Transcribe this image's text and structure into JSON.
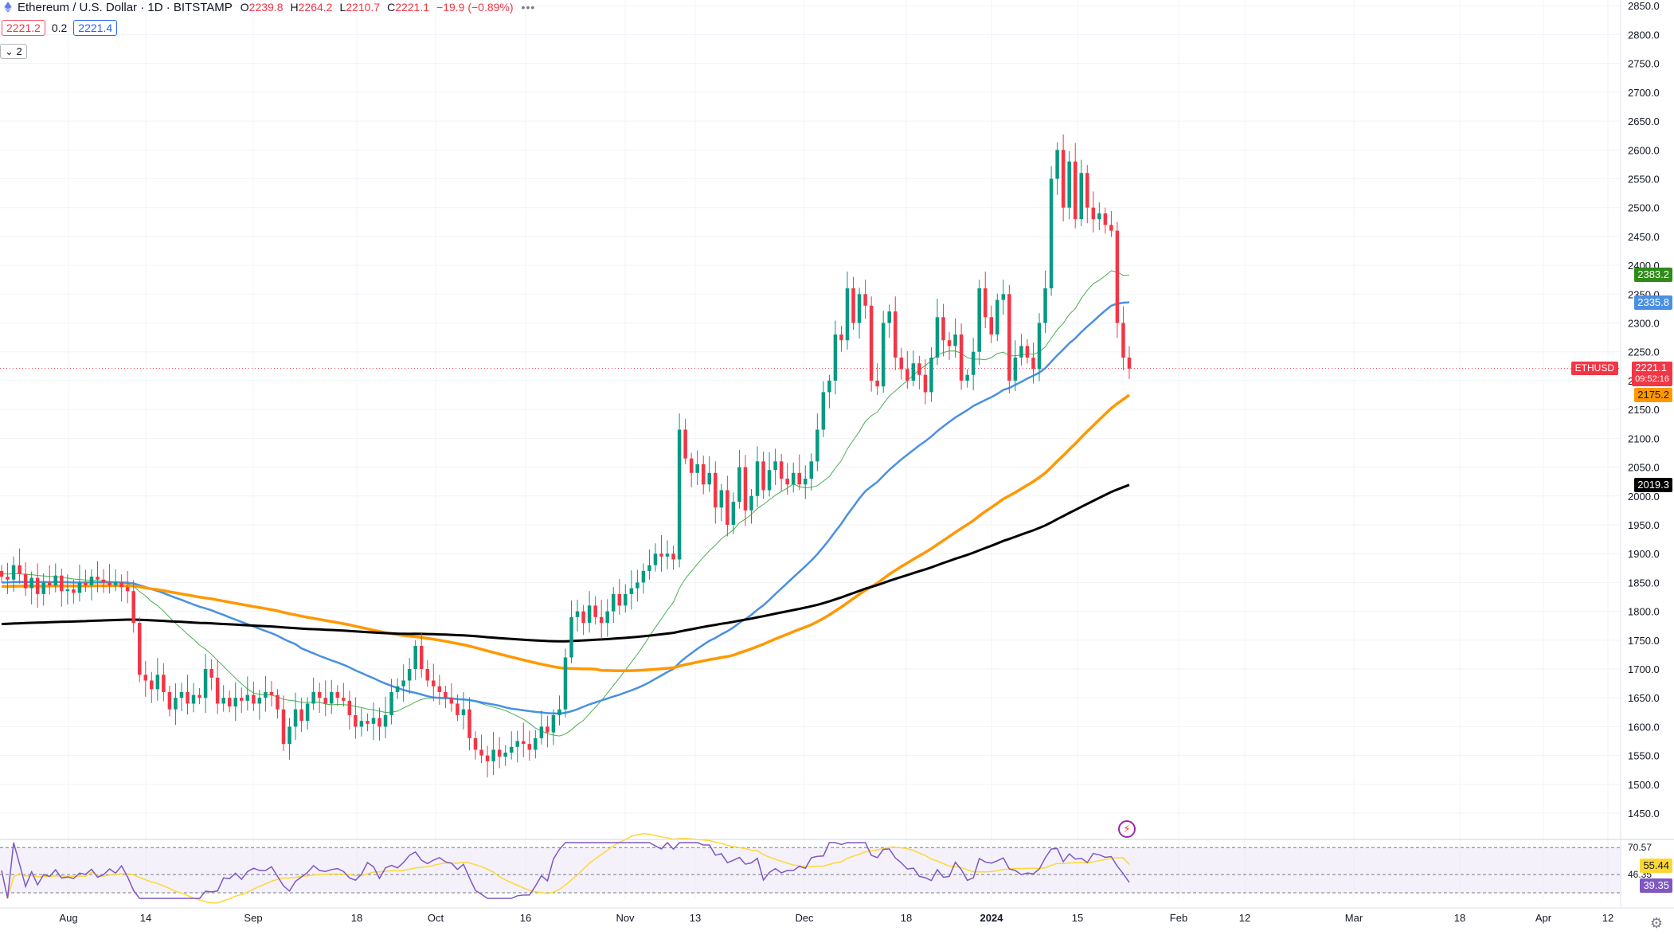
{
  "header": {
    "title": "Ethereum / U.S. Dollar · 1D · BITSTAMP",
    "open_label": "O",
    "open": "2239.8",
    "high_label": "H",
    "high": "2264.2",
    "low_label": "L",
    "low": "2210.7",
    "close_label": "C",
    "close": "2221.1",
    "change": "−19.9 (−0.89%)",
    "more": "•••"
  },
  "prices": {
    "bid": "2221.2",
    "spread": "0.2",
    "ask": "2221.4"
  },
  "indicators_toggle": "2",
  "colors": {
    "up": "#089981",
    "down": "#f23645",
    "ma20": "#4caf50",
    "ma50": "#4a90e2",
    "ma100": "#ff9800",
    "ma200": "#000000",
    "rsi": "#7e57c2",
    "rsi_ma": "#fdd835",
    "grid": "#f0f3fa"
  },
  "price_axis": {
    "ticks": [
      "2850.0",
      "2800.0",
      "2750.0",
      "2700.0",
      "2650.0",
      "2600.0",
      "2550.0",
      "2500.0",
      "2450.0",
      "2400.0",
      "2350.0",
      "2300.0",
      "2250.0",
      "2200.0",
      "2150.0",
      "2100.0",
      "2050.0",
      "2000.0",
      "1950.0",
      "1900.0",
      "1850.0",
      "1800.0",
      "1750.0",
      "1700.0",
      "1650.0",
      "1600.0",
      "1550.0",
      "1500.0",
      "1450.0"
    ],
    "tick_values": [
      2850,
      2800,
      2750,
      2700,
      2650,
      2600,
      2550,
      2500,
      2450,
      2400,
      2350,
      2300,
      2250,
      2200,
      2150,
      2100,
      2050,
      2000,
      1950,
      1900,
      1850,
      1800,
      1750,
      1700,
      1650,
      1600,
      1550,
      1500,
      1450
    ]
  },
  "labels": {
    "ma20": "2383.2",
    "ma50": "2335.8",
    "last": "2221.1",
    "countdown": "09:52:16",
    "ma100": "2175.2",
    "ma200": "2019.3",
    "symbol": "ETHUSD",
    "rsi_high": "70.57",
    "rsi_ma": "55.44",
    "rsi_mid": "46.35",
    "rsi": "39.35"
  },
  "time_axis": {
    "labels": [
      "Aug",
      "14",
      "Sep",
      "18",
      "Oct",
      "16",
      "Nov",
      "13",
      "Dec",
      "18",
      "2024",
      "15",
      "Feb",
      "12",
      "Mar",
      "18",
      "Apr",
      "12"
    ],
    "bold_index": 10
  },
  "chart_data": {
    "type": "candlestick",
    "title": "Ethereum / U.S. Dollar · 1D · BITSTAMP",
    "y_range": [
      1410,
      2860
    ],
    "start_close": 1870,
    "series_closes": [
      1860,
      1855,
      1880,
      1865,
      1840,
      1858,
      1830,
      1850,
      1845,
      1862,
      1835,
      1838,
      1832,
      1850,
      1845,
      1860,
      1855,
      1850,
      1845,
      1850,
      1842,
      1835,
      1780,
      1690,
      1680,
      1665,
      1690,
      1660,
      1630,
      1650,
      1660,
      1640,
      1655,
      1650,
      1700,
      1685,
      1640,
      1650,
      1635,
      1650,
      1645,
      1655,
      1640,
      1650,
      1660,
      1655,
      1630,
      1570,
      1600,
      1630,
      1610,
      1640,
      1660,
      1650,
      1640,
      1660,
      1650,
      1645,
      1620,
      1600,
      1610,
      1605,
      1615,
      1600,
      1620,
      1660,
      1670,
      1680,
      1700,
      1740,
      1700,
      1680,
      1670,
      1660,
      1650,
      1640,
      1620,
      1630,
      1580,
      1560,
      1550,
      1540,
      1560,
      1548,
      1555,
      1565,
      1575,
      1570,
      1560,
      1580,
      1600,
      1590,
      1620,
      1630,
      1720,
      1790,
      1800,
      1780,
      1810,
      1790,
      1780,
      1800,
      1830,
      1810,
      1830,
      1840,
      1850,
      1870,
      1880,
      1900,
      1895,
      1900,
      1890,
      2115,
      2065,
      2040,
      2055,
      2020,
      2040,
      1980,
      2010,
      1950,
      1990,
      2050,
      1975,
      2000,
      2060,
      2010,
      2045,
      2060,
      2030,
      2020,
      2040,
      2020,
      2030,
      2060,
      2115,
      2180,
      2200,
      2280,
      2270,
      2360,
      2300,
      2350,
      2330,
      2200,
      2190,
      2300,
      2320,
      2240,
      2220,
      2200,
      2230,
      2210,
      2180,
      2240,
      2310,
      2270,
      2260,
      2280,
      2200,
      2210,
      2250,
      2360,
      2310,
      2280,
      2340,
      2350,
      2200,
      2240,
      2260,
      2240,
      2220,
      2300,
      2360,
      2550,
      2600,
      2500,
      2580,
      2480,
      2560,
      2500,
      2480,
      2490,
      2470,
      2460,
      2300,
      2240,
      2221
    ],
    "ma20_anchor": {
      "start": 1865,
      "end": 2383.2
    },
    "ma50_anchor": {
      "start": 1850,
      "end": 2335.8
    },
    "ma100_anchor": {
      "start": 1843,
      "end": 2175.2
    },
    "ma200_anchor": {
      "start": 1778,
      "end": 2019.3
    },
    "rsi_levels": {
      "upper": 70.57,
      "middle": 46.35,
      "rsi_ma": 55.44,
      "rsi": 39.35
    },
    "last_price": 2221.1
  }
}
